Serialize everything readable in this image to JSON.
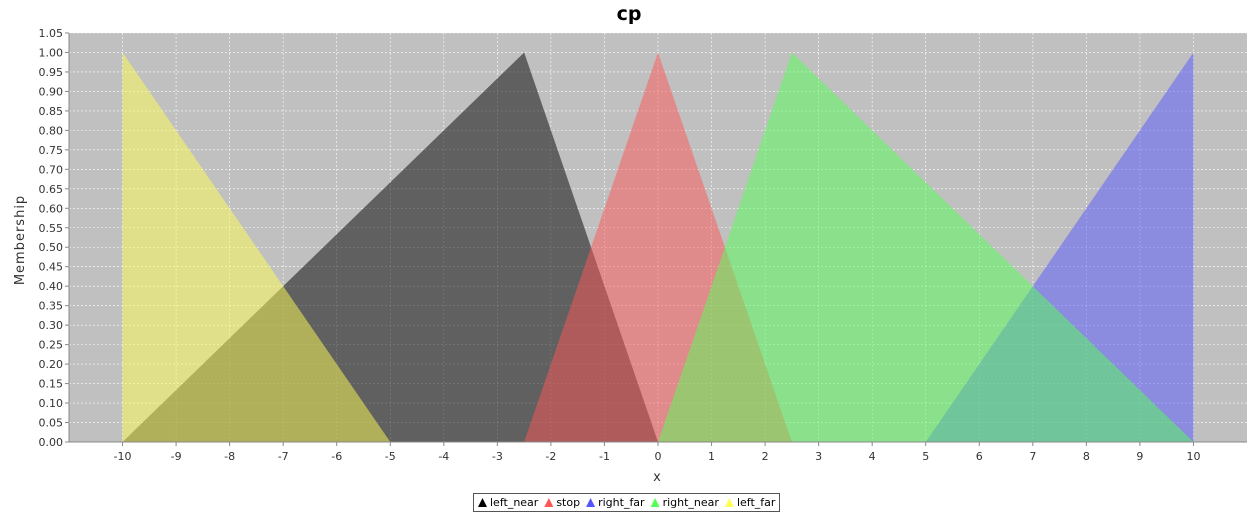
{
  "chart_data": {
    "type": "area",
    "title": "cp",
    "xlabel": "x",
    "ylabel": "Membership",
    "xlim": [
      -11.0,
      11.0
    ],
    "ylim": [
      0,
      1.05
    ],
    "xticks": [
      "-10",
      "-9",
      "-8",
      "-7",
      "-6",
      "-5",
      "-4",
      "-3",
      "-2",
      "-1",
      "0",
      "1",
      "2",
      "3",
      "4",
      "5",
      "6",
      "7",
      "8",
      "9",
      "10"
    ],
    "yticks": [
      "0.00",
      "0.05",
      "0.10",
      "0.15",
      "0.20",
      "0.25",
      "0.30",
      "0.35",
      "0.40",
      "0.45",
      "0.50",
      "0.55",
      "0.60",
      "0.65",
      "0.70",
      "0.75",
      "0.80",
      "0.85",
      "0.90",
      "0.95",
      "1.00",
      "1.05"
    ],
    "grid": true,
    "legend_position": "bottom",
    "series": [
      {
        "name": "left_near",
        "color": "#000000",
        "x": [
          -10,
          -2.5,
          0
        ],
        "y": [
          0,
          1,
          0
        ]
      },
      {
        "name": "stop",
        "color": "#ff5555",
        "x": [
          -2.5,
          0,
          2.5
        ],
        "y": [
          0,
          1,
          0
        ]
      },
      {
        "name": "right_far",
        "color": "#5555ff",
        "x": [
          5,
          10,
          10
        ],
        "y": [
          0,
          1,
          0
        ]
      },
      {
        "name": "right_near",
        "color": "#55ff55",
        "x": [
          0,
          2.5,
          10
        ],
        "y": [
          0,
          1,
          0
        ]
      },
      {
        "name": "left_far",
        "color": "#ffff55",
        "x": [
          -10,
          -10,
          -5
        ],
        "y": [
          0,
          1,
          0
        ]
      }
    ]
  }
}
